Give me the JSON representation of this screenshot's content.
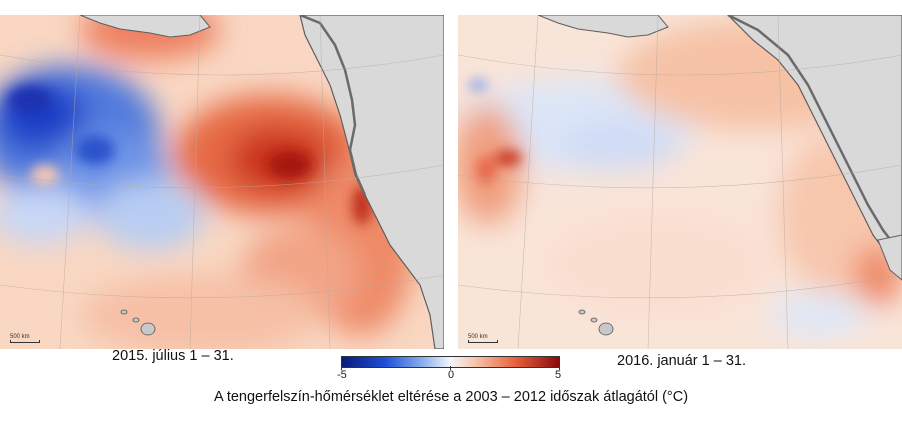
{
  "panels": {
    "left": {
      "date": "2015. július 1 – 31.",
      "scale": "500 km"
    },
    "right": {
      "date": "2016. január 1 – 31.",
      "scale": "500 km"
    }
  },
  "legend": {
    "min": "-5",
    "zero": "0",
    "max": "5",
    "caption": "A tengerfelszín-hőmérséklet eltérése a 2003 – 2012 időszak átlagától (°C)"
  },
  "colors": {
    "cold": "#1f3fc8",
    "neutral": "#f5ece6",
    "warm": "#e8603d",
    "land": "#d9d9d9",
    "coast": "#6a6a6a"
  }
}
